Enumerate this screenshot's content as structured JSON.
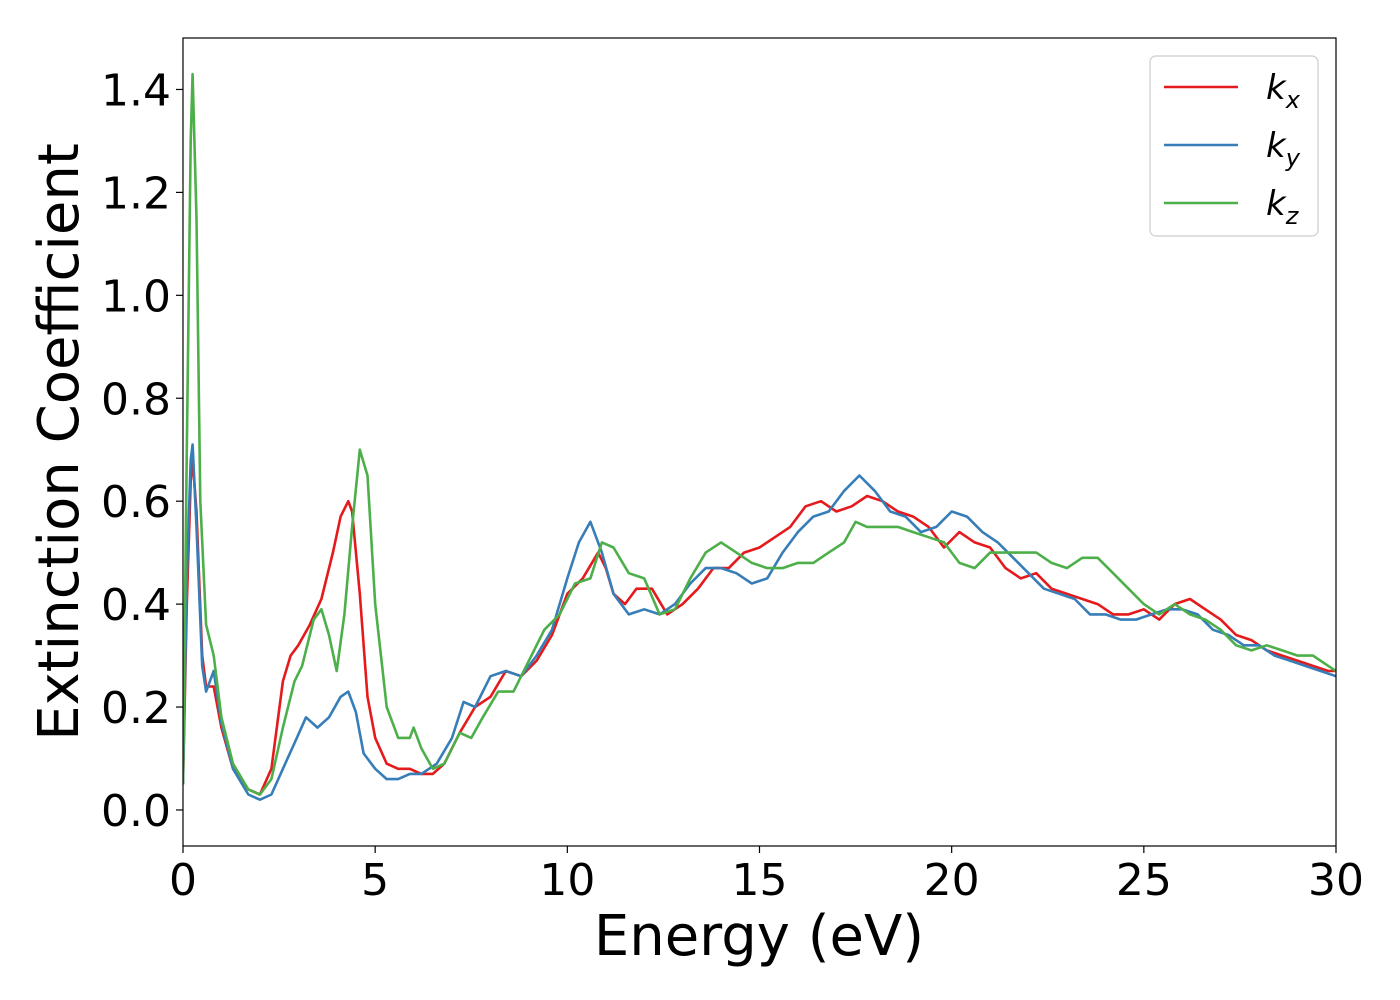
{
  "chart_data": {
    "type": "line",
    "xlabel": "Energy (eV)",
    "ylabel": "Extinction Coefficient",
    "xlim": [
      0,
      30
    ],
    "ylim": [
      -0.07,
      1.5
    ],
    "xticks": [
      0,
      5,
      10,
      15,
      20,
      25,
      30
    ],
    "xtick_labels": [
      "0",
      "5",
      "10",
      "15",
      "20",
      "25",
      "30"
    ],
    "yticks": [
      0.0,
      0.2,
      0.4,
      0.6,
      0.8,
      1.0,
      1.2,
      1.4
    ],
    "ytick_labels": [
      "0.0",
      "0.2",
      "0.4",
      "0.6",
      "0.8",
      "1.0",
      "1.2",
      "1.4"
    ],
    "grid": false,
    "legend_position": "top-right",
    "series": [
      {
        "name": "kx",
        "base": "k",
        "sub": "x",
        "color": "#e41a1c",
        "x": [
          0,
          0.1,
          0.2,
          0.25,
          0.35,
          0.5,
          0.6,
          0.8,
          1.0,
          1.3,
          1.7,
          2.0,
          2.3,
          2.6,
          2.8,
          3.0,
          3.3,
          3.6,
          3.9,
          4.1,
          4.3,
          4.4,
          4.6,
          4.8,
          5.0,
          5.3,
          5.6,
          5.9,
          6.2,
          6.5,
          6.8,
          7.2,
          7.6,
          8.0,
          8.4,
          8.8,
          9.2,
          9.6,
          10.0,
          10.4,
          10.8,
          11.0,
          11.2,
          11.5,
          11.8,
          12.2,
          12.6,
          13.0,
          13.4,
          13.8,
          14.2,
          14.6,
          15.0,
          15.4,
          15.8,
          16.2,
          16.6,
          17.0,
          17.4,
          17.8,
          18.2,
          18.6,
          19.0,
          19.4,
          19.8,
          20.2,
          20.6,
          21.0,
          21.4,
          21.8,
          22.2,
          22.6,
          23.0,
          23.4,
          23.8,
          24.2,
          24.6,
          25.0,
          25.4,
          25.8,
          26.2,
          26.6,
          27.0,
          27.4,
          27.8,
          28.2,
          28.6,
          29.0,
          29.4,
          29.8,
          30.0
        ],
        "y": [
          0.05,
          0.4,
          0.64,
          0.68,
          0.58,
          0.3,
          0.24,
          0.24,
          0.16,
          0.08,
          0.04,
          0.03,
          0.08,
          0.25,
          0.3,
          0.32,
          0.36,
          0.41,
          0.5,
          0.57,
          0.6,
          0.58,
          0.42,
          0.22,
          0.14,
          0.09,
          0.08,
          0.08,
          0.07,
          0.07,
          0.09,
          0.15,
          0.2,
          0.22,
          0.27,
          0.26,
          0.29,
          0.34,
          0.42,
          0.45,
          0.5,
          0.47,
          0.42,
          0.4,
          0.43,
          0.43,
          0.38,
          0.4,
          0.43,
          0.47,
          0.47,
          0.5,
          0.51,
          0.53,
          0.55,
          0.59,
          0.6,
          0.58,
          0.59,
          0.61,
          0.6,
          0.58,
          0.57,
          0.55,
          0.51,
          0.54,
          0.52,
          0.51,
          0.47,
          0.45,
          0.46,
          0.43,
          0.42,
          0.41,
          0.4,
          0.38,
          0.38,
          0.39,
          0.37,
          0.4,
          0.41,
          0.39,
          0.37,
          0.34,
          0.33,
          0.31,
          0.3,
          0.29,
          0.28,
          0.27,
          0.27
        ]
      },
      {
        "name": "ky",
        "base": "k",
        "sub": "y",
        "color": "#377eb8",
        "x": [
          0,
          0.1,
          0.2,
          0.25,
          0.35,
          0.5,
          0.6,
          0.8,
          1.0,
          1.3,
          1.7,
          2.0,
          2.3,
          2.6,
          2.9,
          3.2,
          3.5,
          3.8,
          4.1,
          4.3,
          4.5,
          4.7,
          5.0,
          5.3,
          5.6,
          5.9,
          6.2,
          6.6,
          7.0,
          7.3,
          7.6,
          8.0,
          8.4,
          8.8,
          9.2,
          9.6,
          10.0,
          10.3,
          10.6,
          10.9,
          11.2,
          11.6,
          12.0,
          12.4,
          12.8,
          13.2,
          13.6,
          14.0,
          14.4,
          14.8,
          15.2,
          15.6,
          16.0,
          16.4,
          16.8,
          17.2,
          17.6,
          18.0,
          18.4,
          18.8,
          19.2,
          19.6,
          20.0,
          20.4,
          20.8,
          21.2,
          21.6,
          22.0,
          22.4,
          22.8,
          23.2,
          23.6,
          24.0,
          24.4,
          24.8,
          25.2,
          25.6,
          26.0,
          26.4,
          26.8,
          27.2,
          27.6,
          28.0,
          28.4,
          28.8,
          29.2,
          29.6,
          30.0
        ],
        "y": [
          0.05,
          0.45,
          0.68,
          0.71,
          0.55,
          0.28,
          0.23,
          0.27,
          0.17,
          0.08,
          0.03,
          0.02,
          0.03,
          0.08,
          0.13,
          0.18,
          0.16,
          0.18,
          0.22,
          0.23,
          0.19,
          0.11,
          0.08,
          0.06,
          0.06,
          0.07,
          0.07,
          0.09,
          0.14,
          0.21,
          0.2,
          0.26,
          0.27,
          0.26,
          0.3,
          0.35,
          0.45,
          0.52,
          0.56,
          0.5,
          0.42,
          0.38,
          0.39,
          0.38,
          0.4,
          0.44,
          0.47,
          0.47,
          0.46,
          0.44,
          0.45,
          0.5,
          0.54,
          0.57,
          0.58,
          0.62,
          0.65,
          0.62,
          0.58,
          0.57,
          0.54,
          0.55,
          0.58,
          0.57,
          0.54,
          0.52,
          0.49,
          0.46,
          0.43,
          0.42,
          0.41,
          0.38,
          0.38,
          0.37,
          0.37,
          0.38,
          0.39,
          0.39,
          0.38,
          0.35,
          0.34,
          0.32,
          0.32,
          0.3,
          0.29,
          0.28,
          0.27,
          0.26
        ]
      },
      {
        "name": "kz",
        "base": "k",
        "sub": "z",
        "color": "#4daf4a",
        "x": [
          0,
          0.1,
          0.2,
          0.25,
          0.35,
          0.45,
          0.6,
          0.8,
          1.0,
          1.3,
          1.7,
          2.0,
          2.3,
          2.6,
          2.9,
          3.1,
          3.4,
          3.6,
          3.8,
          4.0,
          4.2,
          4.4,
          4.6,
          4.8,
          5.0,
          5.3,
          5.6,
          5.9,
          6.0,
          6.2,
          6.5,
          6.8,
          7.2,
          7.5,
          7.8,
          8.2,
          8.6,
          9.0,
          9.4,
          9.8,
          10.2,
          10.6,
          10.9,
          11.2,
          11.6,
          12.0,
          12.4,
          12.8,
          13.2,
          13.6,
          14.0,
          14.4,
          14.8,
          15.2,
          15.6,
          16.0,
          16.4,
          16.8,
          17.2,
          17.5,
          17.8,
          18.2,
          18.6,
          19.0,
          19.4,
          19.8,
          20.2,
          20.6,
          21.0,
          21.4,
          21.8,
          22.2,
          22.6,
          23.0,
          23.4,
          23.8,
          24.2,
          24.6,
          25.0,
          25.4,
          25.8,
          26.2,
          26.6,
          27.0,
          27.4,
          27.8,
          28.2,
          28.6,
          29.0,
          29.4,
          29.8,
          30.0
        ],
        "y": [
          0.05,
          0.7,
          1.3,
          1.43,
          1.15,
          0.6,
          0.36,
          0.3,
          0.18,
          0.09,
          0.04,
          0.03,
          0.06,
          0.16,
          0.25,
          0.28,
          0.37,
          0.39,
          0.34,
          0.27,
          0.38,
          0.55,
          0.7,
          0.65,
          0.4,
          0.2,
          0.14,
          0.14,
          0.16,
          0.12,
          0.08,
          0.09,
          0.15,
          0.14,
          0.18,
          0.23,
          0.23,
          0.29,
          0.35,
          0.38,
          0.44,
          0.45,
          0.52,
          0.51,
          0.46,
          0.45,
          0.38,
          0.39,
          0.45,
          0.5,
          0.52,
          0.5,
          0.48,
          0.47,
          0.47,
          0.48,
          0.48,
          0.5,
          0.52,
          0.56,
          0.55,
          0.55,
          0.55,
          0.54,
          0.53,
          0.52,
          0.48,
          0.47,
          0.5,
          0.5,
          0.5,
          0.5,
          0.48,
          0.47,
          0.49,
          0.49,
          0.46,
          0.43,
          0.4,
          0.38,
          0.4,
          0.38,
          0.37,
          0.35,
          0.32,
          0.31,
          0.32,
          0.31,
          0.3,
          0.3,
          0.28,
          0.27
        ]
      }
    ]
  }
}
